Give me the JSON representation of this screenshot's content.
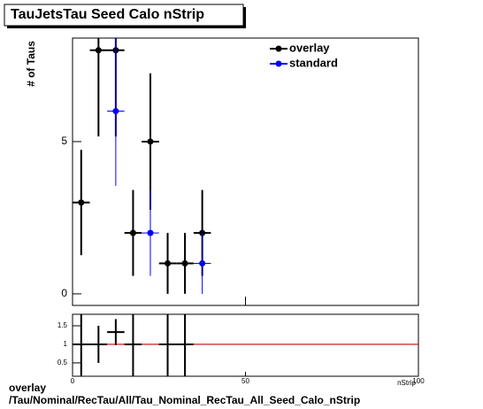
{
  "title": "TauJetsTau Seed Calo nStrip",
  "footer": {
    "label": "overlay",
    "path": "/Tau/Nominal/RecTau/All/Tau_Nominal_RecTau_All_Seed_Calo_nStrip"
  },
  "chart_data": [
    {
      "type": "scatter",
      "ylabel": "# of Taus",
      "xlim": [
        0,
        100
      ],
      "xticks": [
        0,
        50,
        100
      ],
      "ylim": [
        -0.38,
        8.4
      ],
      "yticks": [
        0,
        5
      ],
      "xerr": 2.5,
      "legend": "top-right",
      "series": [
        {
          "name": "overlay",
          "color": "#000000",
          "x": [
            2.5,
            7.5,
            12.5,
            17.5,
            22.5,
            27.5,
            32.5,
            37.5
          ],
          "values": [
            3,
            8,
            8,
            2,
            5,
            1,
            1,
            2
          ],
          "errors": [
            1.73,
            2.83,
            2.83,
            1.41,
            2.24,
            1,
            1,
            1.41
          ]
        },
        {
          "name": "standard",
          "color": "#0000ff",
          "x": [
            12.5,
            22.5,
            37.5
          ],
          "values": [
            6,
            2,
            1
          ],
          "errors": [
            2.45,
            1.41,
            1
          ]
        }
      ]
    },
    {
      "type": "scatter",
      "xlabel": "nStrip",
      "xlim": [
        0,
        100
      ],
      "xticks": [
        0,
        50,
        100
      ],
      "ylim": [
        0.14,
        1.81
      ],
      "yticks": [
        0.5,
        1,
        1.5
      ],
      "xerr": 2.5,
      "reference_line": 1,
      "reference_color": "#cc0000",
      "series": [
        {
          "color": "#000000",
          "x": [
            2.5,
            7.5,
            12.5,
            17.5,
            27.5,
            32.5
          ],
          "values": [
            1,
            1,
            1.33,
            1,
            1,
            1
          ],
          "errors": [
            1.41,
            0.5,
            0.35,
            1.41,
            1.41,
            1.41
          ]
        }
      ]
    }
  ]
}
